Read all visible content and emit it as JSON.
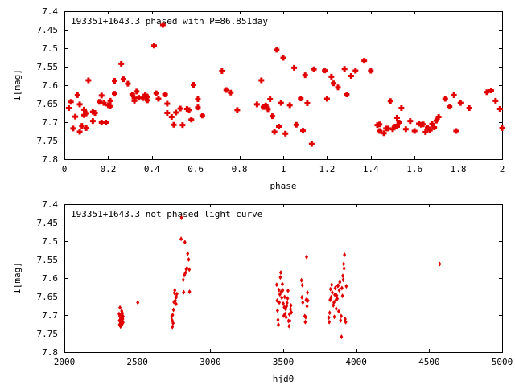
{
  "chart_data": [
    {
      "type": "scatter",
      "title": "193351+1643.3 phased with P=86.851day",
      "xlabel": "phase",
      "ylabel": "I[mag]",
      "xlim": [
        0,
        2
      ],
      "ylim": [
        7.8,
        7.4
      ],
      "y_inverted": true,
      "grid": false,
      "xticks": [
        "0",
        "0.2",
        "0.4",
        "0.6",
        "0.8",
        "1",
        "1.2",
        "1.4",
        "1.6",
        "1.8",
        "2"
      ],
      "yticks": [
        "7.4",
        "7.45",
        "7.5",
        "7.55",
        "7.6",
        "7.65",
        "7.7",
        "7.75",
        "7.8"
      ],
      "marker_color": "#e00000",
      "points": [
        [
          0.02,
          7.662
        ],
        [
          0.03,
          7.645
        ],
        [
          0.04,
          7.717
        ],
        [
          0.05,
          7.685
        ],
        [
          0.06,
          7.627
        ],
        [
          0.07,
          7.726
        ],
        [
          0.07,
          7.652
        ],
        [
          0.08,
          7.71
        ],
        [
          0.09,
          7.666
        ],
        [
          0.09,
          7.681
        ],
        [
          0.1,
          7.676
        ],
        [
          0.1,
          7.716
        ],
        [
          0.11,
          7.587
        ],
        [
          0.13,
          7.672
        ],
        [
          0.13,
          7.697
        ],
        [
          0.14,
          7.675
        ],
        [
          0.16,
          7.645
        ],
        [
          0.17,
          7.701
        ],
        [
          0.17,
          7.628
        ],
        [
          0.18,
          7.648
        ],
        [
          0.19,
          7.701
        ],
        [
          0.2,
          7.654
        ],
        [
          0.21,
          7.642
        ],
        [
          0.21,
          7.657
        ],
        [
          0.23,
          7.588
        ],
        [
          0.23,
          7.623
        ],
        [
          0.26,
          7.542
        ],
        [
          0.27,
          7.584
        ],
        [
          0.29,
          7.596
        ],
        [
          0.31,
          7.625
        ],
        [
          0.32,
          7.635
        ],
        [
          0.32,
          7.642
        ],
        [
          0.33,
          7.617
        ],
        [
          0.34,
          7.634
        ],
        [
          0.36,
          7.635
        ],
        [
          0.37,
          7.626
        ],
        [
          0.38,
          7.641
        ],
        [
          0.38,
          7.632
        ],
        [
          0.41,
          7.493
        ],
        [
          0.42,
          7.622
        ],
        [
          0.43,
          7.637
        ],
        [
          0.45,
          7.437
        ],
        [
          0.46,
          7.625
        ],
        [
          0.47,
          7.65
        ],
        [
          0.47,
          7.675
        ],
        [
          0.49,
          7.686
        ],
        [
          0.5,
          7.707
        ],
        [
          0.51,
          7.674
        ],
        [
          0.53,
          7.663
        ],
        [
          0.54,
          7.708
        ],
        [
          0.56,
          7.664
        ],
        [
          0.57,
          7.667
        ],
        [
          0.58,
          7.693
        ],
        [
          0.59,
          7.599
        ],
        [
          0.61,
          7.638
        ],
        [
          0.61,
          7.66
        ],
        [
          0.63,
          7.682
        ],
        [
          0.72,
          7.562
        ],
        [
          0.74,
          7.613
        ],
        [
          0.76,
          7.62
        ],
        [
          0.79,
          7.667
        ],
        [
          0.88,
          7.652
        ],
        [
          0.9,
          7.587
        ],
        [
          0.91,
          7.659
        ],
        [
          0.92,
          7.655
        ],
        [
          0.93,
          7.665
        ],
        [
          0.94,
          7.638
        ],
        [
          0.95,
          7.684
        ],
        [
          0.96,
          7.726
        ],
        [
          0.97,
          7.504
        ],
        [
          0.98,
          7.712
        ],
        [
          0.99,
          7.648
        ],
        [
          1.0,
          7.526
        ],
        [
          1.01,
          7.731
        ],
        [
          1.03,
          7.654
        ],
        [
          1.05,
          7.553
        ],
        [
          1.06,
          7.707
        ],
        [
          1.08,
          7.636
        ],
        [
          1.09,
          7.723
        ],
        [
          1.1,
          7.573
        ],
        [
          1.11,
          7.649
        ],
        [
          1.13,
          7.759
        ],
        [
          1.14,
          7.557
        ],
        [
          1.19,
          7.56
        ],
        [
          1.2,
          7.637
        ],
        [
          1.22,
          7.577
        ],
        [
          1.23,
          7.595
        ],
        [
          1.25,
          7.606
        ],
        [
          1.28,
          7.556
        ],
        [
          1.29,
          7.625
        ],
        [
          1.31,
          7.575
        ],
        [
          1.33,
          7.561
        ],
        [
          1.37,
          7.534
        ],
        [
          1.4,
          7.561
        ],
        [
          1.43,
          7.708
        ],
        [
          1.44,
          7.724
        ],
        [
          1.44,
          7.706
        ],
        [
          1.46,
          7.73
        ],
        [
          1.47,
          7.717
        ],
        [
          1.48,
          7.717
        ],
        [
          1.49,
          7.643
        ],
        [
          1.5,
          7.719
        ],
        [
          1.51,
          7.712
        ],
        [
          1.52,
          7.688
        ],
        [
          1.52,
          7.712
        ],
        [
          1.53,
          7.701
        ],
        [
          1.54,
          7.662
        ],
        [
          1.56,
          7.719
        ],
        [
          1.58,
          7.697
        ],
        [
          1.6,
          7.724
        ],
        [
          1.62,
          7.704
        ],
        [
          1.63,
          7.707
        ],
        [
          1.64,
          7.706
        ],
        [
          1.65,
          7.727
        ],
        [
          1.66,
          7.715
        ],
        [
          1.67,
          7.722
        ],
        [
          1.68,
          7.705
        ],
        [
          1.69,
          7.714
        ],
        [
          1.7,
          7.696
        ],
        [
          1.71,
          7.686
        ],
        [
          1.74,
          7.637
        ],
        [
          1.76,
          7.658
        ],
        [
          1.78,
          7.627
        ],
        [
          1.79,
          7.724
        ],
        [
          1.81,
          7.648
        ],
        [
          1.85,
          7.662
        ],
        [
          1.93,
          7.619
        ],
        [
          1.95,
          7.614
        ],
        [
          1.97,
          7.642
        ],
        [
          1.99,
          7.664
        ],
        [
          2.0,
          7.716
        ]
      ]
    },
    {
      "type": "scatter",
      "title": "193351+1643.3 not phased light curve",
      "xlabel": "hjd0",
      "ylabel": "I[mag]",
      "xlim": [
        2000,
        5000
      ],
      "ylim": [
        7.8,
        7.4
      ],
      "y_inverted": true,
      "grid": false,
      "xticks": [
        "2000",
        "2500",
        "3000",
        "3500",
        "4000",
        "4500",
        "5000"
      ],
      "yticks": [
        "7.4",
        "7.45",
        "7.5",
        "7.55",
        "7.6",
        "7.65",
        "7.7",
        "7.75",
        "7.8"
      ],
      "marker_color": "#e00000",
      "points": [
        [
          2375,
          7.697
        ],
        [
          2377,
          7.715
        ],
        [
          2378,
          7.726
        ],
        [
          2380,
          7.703
        ],
        [
          2381,
          7.68
        ],
        [
          2383,
          7.717
        ],
        [
          2385,
          7.731
        ],
        [
          2386,
          7.708
        ],
        [
          2387,
          7.722
        ],
        [
          2389,
          7.698
        ],
        [
          2390,
          7.712
        ],
        [
          2391,
          7.701
        ],
        [
          2393,
          7.689
        ],
        [
          2394,
          7.726
        ],
        [
          2395,
          7.705
        ],
        [
          2396,
          7.716
        ],
        [
          2398,
          7.695
        ],
        [
          2400,
          7.711
        ],
        [
          2402,
          7.72
        ],
        [
          2403,
          7.704
        ],
        [
          2503,
          7.666
        ],
        [
          2735,
          7.705
        ],
        [
          2738,
          7.714
        ],
        [
          2740,
          7.732
        ],
        [
          2742,
          7.7
        ],
        [
          2745,
          7.722
        ],
        [
          2748,
          7.686
        ],
        [
          2751,
          7.665
        ],
        [
          2754,
          7.64
        ],
        [
          2757,
          7.633
        ],
        [
          2760,
          7.661
        ],
        [
          2763,
          7.652
        ],
        [
          2766,
          7.67
        ],
        [
          2768,
          7.651
        ],
        [
          2771,
          7.643
        ],
        [
          2800,
          7.494
        ],
        [
          2803,
          7.437
        ],
        [
          2815,
          7.605
        ],
        [
          2818,
          7.638
        ],
        [
          2822,
          7.592
        ],
        [
          2826,
          7.503
        ],
        [
          2830,
          7.586
        ],
        [
          2835,
          7.576
        ],
        [
          2840,
          7.573
        ],
        [
          2845,
          7.534
        ],
        [
          2852,
          7.55
        ],
        [
          2856,
          7.577
        ],
        [
          2858,
          7.637
        ],
        [
          3455,
          7.618
        ],
        [
          3458,
          7.661
        ],
        [
          3461,
          7.688
        ],
        [
          3464,
          7.713
        ],
        [
          3467,
          7.726
        ],
        [
          3470,
          7.632
        ],
        [
          3473,
          7.666
        ],
        [
          3477,
          7.644
        ],
        [
          3480,
          7.598
        ],
        [
          3483,
          7.585
        ],
        [
          3486,
          7.637
        ],
        [
          3490,
          7.653
        ],
        [
          3494,
          7.616
        ],
        [
          3497,
          7.633
        ],
        [
          3500,
          7.669
        ],
        [
          3504,
          7.702
        ],
        [
          3507,
          7.679
        ],
        [
          3510,
          7.651
        ],
        [
          3513,
          7.697
        ],
        [
          3517,
          7.684
        ],
        [
          3520,
          7.706
        ],
        [
          3523,
          7.676
        ],
        [
          3526,
          7.667
        ],
        [
          3530,
          7.655
        ],
        [
          3533,
          7.634
        ],
        [
          3536,
          7.716
        ],
        [
          3540,
          7.73
        ],
        [
          3543,
          7.698
        ],
        [
          3546,
          7.716
        ],
        [
          3550,
          7.684
        ],
        [
          3553,
          7.674
        ],
        [
          3556,
          7.693
        ],
        [
          3625,
          7.606
        ],
        [
          3628,
          7.652
        ],
        [
          3631,
          7.619
        ],
        [
          3634,
          7.666
        ],
        [
          3648,
          7.703
        ],
        [
          3651,
          7.719
        ],
        [
          3654,
          7.706
        ],
        [
          3657,
          7.659
        ],
        [
          3660,
          7.543
        ],
        [
          3663,
          7.676
        ],
        [
          3666,
          7.639
        ],
        [
          3669,
          7.661
        ],
        [
          3812,
          7.707
        ],
        [
          3815,
          7.719
        ],
        [
          3818,
          7.694
        ],
        [
          3821,
          7.659
        ],
        [
          3824,
          7.63
        ],
        [
          3828,
          7.652
        ],
        [
          3832,
          7.618
        ],
        [
          3836,
          7.639
        ],
        [
          3843,
          7.674
        ],
        [
          3847,
          7.666
        ],
        [
          3850,
          7.705
        ],
        [
          3853,
          7.645
        ],
        [
          3856,
          7.627
        ],
        [
          3860,
          7.66
        ],
        [
          3863,
          7.683
        ],
        [
          3866,
          7.647
        ],
        [
          3870,
          7.656
        ],
        [
          3873,
          7.621
        ],
        [
          3877,
          7.62
        ],
        [
          3880,
          7.69
        ],
        [
          3884,
          7.633
        ],
        [
          3888,
          7.611
        ],
        [
          3893,
          7.715
        ],
        [
          3897,
          7.703
        ],
        [
          3899,
          7.759
        ],
        [
          3902,
          7.627
        ],
        [
          3906,
          7.648
        ],
        [
          3908,
          7.594
        ],
        [
          3911,
          7.605
        ],
        [
          3914,
          7.562
        ],
        [
          3917,
          7.574
        ],
        [
          3920,
          7.537
        ],
        [
          3924,
          7.711
        ],
        [
          3928,
          7.719
        ],
        [
          3932,
          7.622
        ],
        [
          4572,
          7.562
        ]
      ]
    }
  ]
}
